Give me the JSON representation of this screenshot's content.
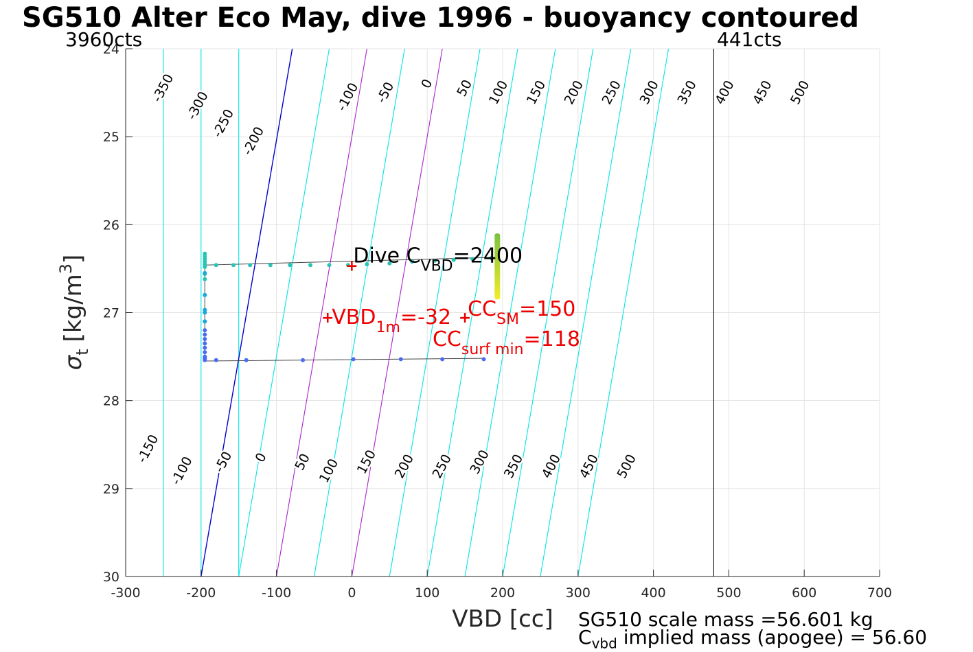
{
  "chart_data": {
    "type": "scatter",
    "title": "SG510 Alter Eco May, dive 1996 - buoyancy contoured",
    "xlabel": "VBD [cc]",
    "ylabel_symbol": "σ",
    "ylabel_sub": "t",
    "ylabel_unit": "[kg/m",
    "ylabel_sup": "3",
    "ylabel_close": "]",
    "xlim": [
      -300,
      700
    ],
    "ylim": [
      24,
      30
    ],
    "y_reversed": true,
    "grid": true,
    "xticks": [
      -300,
      -200,
      -100,
      0,
      100,
      200,
      300,
      400,
      500,
      600,
      700
    ],
    "xtick_labels": [
      "-300",
      "-200",
      "-100",
      "0",
      "100",
      "200",
      "300",
      "400",
      "500",
      "600",
      "700"
    ],
    "yticks": [
      24,
      25,
      26,
      27,
      28,
      29,
      30
    ],
    "ytick_labels": [
      "24",
      "25",
      "26",
      "27",
      "28",
      "29",
      "30"
    ],
    "vbd_min_label": "3960cts",
    "vbd_max_label": "441cts",
    "vbd_max_line_x": 480,
    "contours": {
      "levels": [
        -350,
        -300,
        -250,
        -200,
        -150,
        -100,
        -50,
        0,
        50,
        100,
        150,
        200,
        250,
        300,
        350,
        400,
        450,
        500
      ],
      "x_at_24": [
        -450,
        -400,
        -350,
        -300,
        -250,
        -200,
        -150,
        -79,
        -30,
        20,
        70,
        120,
        170,
        220,
        270,
        320,
        370,
        420
      ],
      "x_at_30": [
        -450,
        -400,
        -350,
        -300,
        -250,
        -200,
        -150,
        -200,
        -150,
        -100,
        -50,
        0,
        50,
        100,
        150,
        200,
        250,
        300
      ],
      "upper_labels": [
        "-350",
        "-300",
        "-250",
        "-200",
        "-100",
        "-50",
        "0",
        "50",
        "100",
        "150",
        "200",
        "250",
        "300",
        "350",
        "400",
        "450",
        "500"
      ],
      "upper_label_x": [
        -250,
        -204,
        -170,
        -130,
        -5,
        45,
        100,
        150,
        195,
        245,
        295,
        345,
        395,
        445,
        495,
        545,
        595
      ],
      "upper_label_y": [
        24.45,
        24.65,
        24.85,
        25.05,
        24.55,
        24.5,
        24.4,
        24.45,
        24.5,
        24.5,
        24.5,
        24.5,
        24.5,
        24.5,
        24.5,
        24.5,
        24.5
      ],
      "lower_labels": [
        "-150",
        "-100",
        "-50",
        "0",
        "50",
        "100",
        "150",
        "200",
        "250",
        "300",
        "350",
        "400",
        "450",
        "500"
      ],
      "lower_label_x": [
        -270,
        -225,
        -170,
        -120,
        -65,
        -30,
        20,
        70,
        120,
        170,
        215,
        265,
        315,
        365
      ],
      "lower_label_y": [
        28.55,
        28.8,
        28.7,
        28.65,
        28.7,
        28.8,
        28.7,
        28.75,
        28.75,
        28.7,
        28.75,
        28.75,
        28.75,
        28.75
      ],
      "colors": {
        "default": "#00e5e5",
        "zero": "#0000cc",
        "highlight": "#aa22cc"
      },
      "highlight_levels": [
        100,
        200
      ]
    },
    "series": [
      {
        "x": [
          -195,
          -195,
          -195,
          -195,
          -195,
          -195,
          -195,
          -195,
          -195,
          -195,
          -180,
          -157,
          -135,
          -108,
          -82,
          -55,
          -30,
          -5,
          20,
          50,
          80,
          110,
          135,
          160,
          185
        ],
        "y": [
          26.33,
          26.36,
          26.39,
          26.42,
          26.45,
          26.48,
          26.56,
          26.62,
          26.8,
          26.97,
          26.46,
          26.46,
          26.46,
          26.46,
          26.46,
          26.46,
          26.46,
          26.46,
          26.45,
          26.44,
          26.42,
          26.41,
          26.4,
          26.39,
          26.38
        ],
        "color": "#28c4b4"
      },
      {
        "x": [
          -195,
          -195,
          -195,
          -195,
          -195,
          -195,
          -195,
          -195,
          -195,
          -195,
          -180,
          -140,
          -65,
          2,
          65,
          120,
          175
        ],
        "y": [
          27.1,
          27.2,
          27.25,
          27.3,
          27.35,
          27.4,
          27.45,
          27.5,
          27.52,
          27.54,
          27.54,
          27.54,
          27.54,
          27.53,
          27.53,
          27.53,
          27.53
        ],
        "color": "#4a6cf0"
      },
      {
        "x": [
          -195,
          -195,
          -195,
          -195,
          -195
        ],
        "y": [
          26.55,
          26.8,
          26.97,
          27.0,
          27.1
        ],
        "color": "#1ba8dc"
      }
    ],
    "gradient_band": {
      "x": 193,
      "y_top": 26.1,
      "y_bottom": 26.85,
      "color_top": "#7ac142",
      "color_bottom": "#f4ec2a"
    },
    "path_line": {
      "x": [
        -195,
        -195,
        175
      ],
      "y": [
        26.46,
        27.55,
        27.52
      ],
      "upper_x": [
        -195,
        195
      ],
      "upper_y": [
        26.46,
        26.37
      ],
      "color": "#444444"
    },
    "annotations": {
      "dive_c_vbd": {
        "prefix": "Dive C",
        "sub": "VBD",
        "suffix": "=2400",
        "x": 0,
        "y": 26.46,
        "color": "#000000"
      },
      "vbd_1m": {
        "prefix": "VBD",
        "sub": "1m",
        "suffix": "=-32",
        "x": -32,
        "y": 27.05,
        "color": "#ee0000"
      },
      "cc_sm": {
        "prefix": "CC",
        "sub": "SM",
        "suffix": "=150",
        "x": 150,
        "y": 27.05,
        "color": "#ee0000"
      },
      "cc_surf_min": {
        "prefix": "CC",
        "sub": "surf min",
        "suffix": "=118",
        "x": 118,
        "y": 27.3,
        "color": "#ee0000"
      }
    }
  },
  "footer": {
    "line1": "SG510 scale mass =56.601 kg",
    "line2_prefix": "C",
    "line2_sub": "vbd",
    "line2_suffix": " implied mass (apogee) = 56.60"
  }
}
